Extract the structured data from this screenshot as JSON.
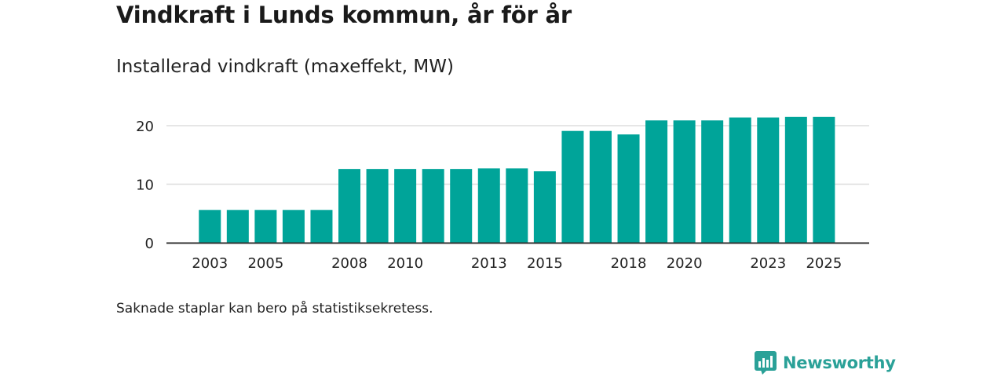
{
  "header": {
    "title": "Vindkraft i Lunds kommun, år för år",
    "subtitle": "Installerad vindkraft (maxeffekt, MW)"
  },
  "footer": {
    "note": "Saknade staplar kan bero på statistiksekretess.",
    "brand": "Newsworthy"
  },
  "colors": {
    "bar": "#00a499",
    "grid": "#dddddd",
    "axis": "#333333",
    "brand": "#2aa198"
  },
  "chart_data": {
    "type": "bar",
    "title": "Vindkraft i Lunds kommun, år för år",
    "subtitle": "Installerad vindkraft (maxeffekt, MW)",
    "xlabel": "",
    "ylabel": "",
    "ylim": [
      0,
      22
    ],
    "yticks": [
      0,
      10,
      20
    ],
    "grid": true,
    "categories": [
      "2003",
      "2004",
      "2005",
      "2006",
      "2007",
      "2008",
      "2009",
      "2010",
      "2011",
      "2012",
      "2013",
      "2014",
      "2015",
      "2016",
      "2017",
      "2018",
      "2019",
      "2020",
      "2021",
      "2022",
      "2023",
      "2024",
      "2025"
    ],
    "values": [
      5.6,
      5.6,
      5.6,
      5.6,
      5.6,
      12.6,
      12.6,
      12.6,
      12.6,
      12.6,
      12.7,
      12.7,
      12.2,
      19.1,
      19.1,
      18.5,
      20.9,
      20.9,
      20.9,
      21.4,
      21.4,
      21.5,
      21.5
    ],
    "xtick_labels": [
      "2003",
      "2005",
      "2008",
      "2010",
      "2013",
      "2015",
      "2018",
      "2020",
      "2023",
      "2025"
    ]
  }
}
